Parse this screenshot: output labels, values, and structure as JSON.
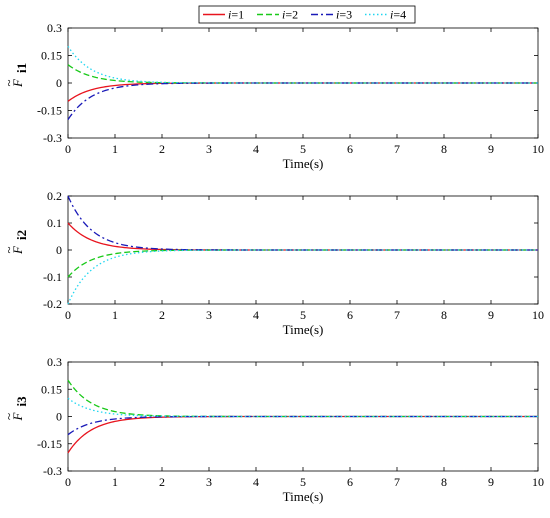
{
  "chart_data": [
    {
      "type": "line",
      "xlabel": "Time(s)",
      "ylabel_main": "F",
      "ylabel_sub": "i1",
      "xlim": [
        0,
        10
      ],
      "ylim": [
        -0.3,
        0.3
      ],
      "xticks": [
        0,
        1,
        2,
        3,
        4,
        5,
        6,
        7,
        8,
        9,
        10
      ],
      "xtick_labels": [
        "0",
        "1",
        "2",
        "3",
        "4",
        "5",
        "6",
        "7",
        "8",
        "9",
        "10"
      ],
      "yticks": [
        0.3,
        0.15,
        0,
        -0.15,
        -0.3
      ],
      "ytick_labels": [
        "0.3",
        "0.15",
        "0",
        "-0.15",
        "-0.3"
      ],
      "series": [
        {
          "name": "i=1",
          "color": "#e8141e",
          "dash": "solid",
          "initial": -0.1,
          "decay": 2.0
        },
        {
          "name": "i=2",
          "color": "#19c919",
          "dash": "dashed",
          "initial": 0.1,
          "decay": 2.0
        },
        {
          "name": "i=3",
          "color": "#1a1ab8",
          "dash": "dashdot",
          "initial": -0.2,
          "decay": 2.0
        },
        {
          "name": "i=4",
          "color": "#20d6f0",
          "dash": "dotted",
          "initial": 0.2,
          "decay": 2.0
        }
      ]
    },
    {
      "type": "line",
      "xlabel": "Time(s)",
      "ylabel_main": "F",
      "ylabel_sub": "i2",
      "xlim": [
        0,
        10
      ],
      "ylim": [
        -0.2,
        0.2
      ],
      "xticks": [
        0,
        1,
        2,
        3,
        4,
        5,
        6,
        7,
        8,
        9,
        10
      ],
      "xtick_labels": [
        "0",
        "1",
        "2",
        "3",
        "4",
        "5",
        "6",
        "7",
        "8",
        "9",
        "10"
      ],
      "yticks": [
        0.2,
        0.1,
        0,
        -0.1,
        -0.2
      ],
      "ytick_labels": [
        "0.2",
        "0.1",
        "0",
        "-0.1",
        "-0.2"
      ],
      "series": [
        {
          "name": "i=1",
          "color": "#e8141e",
          "dash": "solid",
          "initial": 0.1,
          "decay": 2.0
        },
        {
          "name": "i=2",
          "color": "#19c919",
          "dash": "dashed",
          "initial": -0.1,
          "decay": 2.0
        },
        {
          "name": "i=3",
          "color": "#1a1ab8",
          "dash": "dashdot",
          "initial": 0.2,
          "decay": 2.0
        },
        {
          "name": "i=4",
          "color": "#20d6f0",
          "dash": "dotted",
          "initial": -0.2,
          "decay": 2.0
        }
      ]
    },
    {
      "type": "line",
      "xlabel": "Time(s)",
      "ylabel_main": "F",
      "ylabel_sub": "i3",
      "xlim": [
        0,
        10
      ],
      "ylim": [
        -0.3,
        0.3
      ],
      "xticks": [
        0,
        1,
        2,
        3,
        4,
        5,
        6,
        7,
        8,
        9,
        10
      ],
      "xtick_labels": [
        "0",
        "1",
        "2",
        "3",
        "4",
        "5",
        "6",
        "7",
        "8",
        "9",
        "10"
      ],
      "yticks": [
        0.3,
        0.15,
        0,
        -0.15,
        -0.3
      ],
      "ytick_labels": [
        "0.3",
        "0.15",
        "0",
        "-0.15",
        "-0.3"
      ],
      "series": [
        {
          "name": "i=1",
          "color": "#e8141e",
          "dash": "solid",
          "initial": -0.2,
          "decay": 2.0
        },
        {
          "name": "i=2",
          "color": "#19c919",
          "dash": "dashed",
          "initial": 0.2,
          "decay": 2.0
        },
        {
          "name": "i=3",
          "color": "#1a1ab8",
          "dash": "dashdot",
          "initial": -0.1,
          "decay": 2.0
        },
        {
          "name": "i=4",
          "color": "#20d6f0",
          "dash": "dotted",
          "initial": 0.1,
          "decay": 2.0
        }
      ]
    }
  ],
  "legend": {
    "placement": "top-center",
    "items": [
      {
        "prefix": "i",
        "suffix": "=1",
        "color": "#e8141e",
        "dash": "solid"
      },
      {
        "prefix": "i",
        "suffix": "=2",
        "color": "#19c919",
        "dash": "dashed"
      },
      {
        "prefix": "i",
        "suffix": "=3",
        "color": "#1a1ab8",
        "dash": "dashdot"
      },
      {
        "prefix": "i",
        "suffix": "=4",
        "color": "#20d6f0",
        "dash": "dotted"
      }
    ]
  }
}
